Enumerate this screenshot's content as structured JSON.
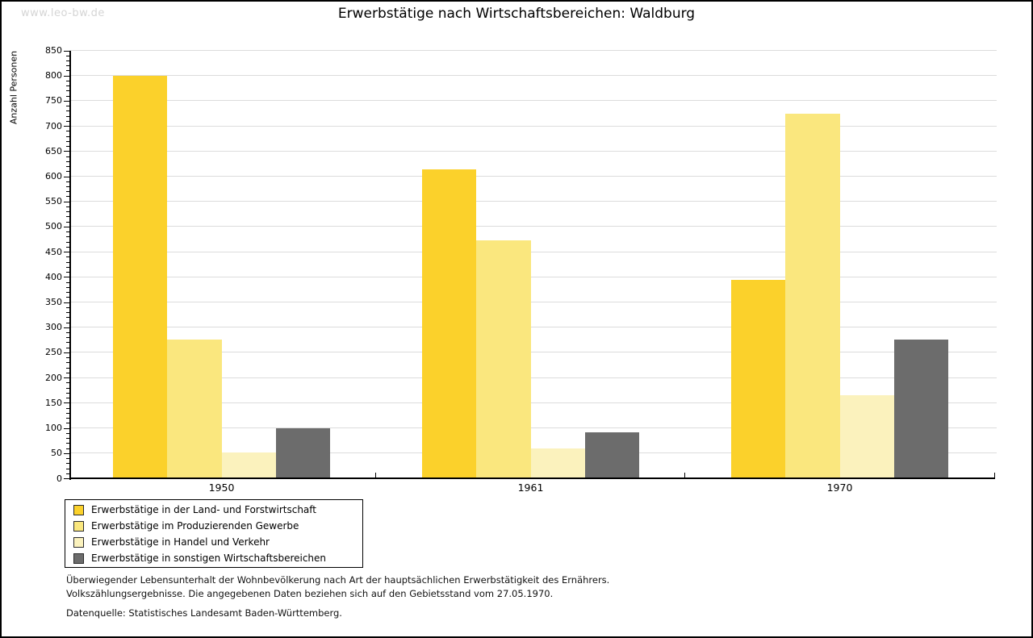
{
  "watermark": "www.leo-bw.de",
  "title": "Erwerbstätige nach Wirtschaftsbereichen: Waldburg",
  "chart_data": {
    "type": "bar",
    "title": "Erwerbstätige nach Wirtschaftsbereichen: Waldburg",
    "xlabel": "",
    "ylabel": "Anzahl Personen",
    "ylim": [
      0,
      850
    ],
    "ytick_step": 50,
    "minor_tick_step": 10,
    "grid": true,
    "legend_position": "bottom-left",
    "categories": [
      "1950",
      "1961",
      "1970"
    ],
    "series": [
      {
        "name": "Erwerbstätige in der Land- und Forstwirtschaft",
        "color": "#FBD12B",
        "values": [
          800,
          613,
          394
        ]
      },
      {
        "name": "Erwerbstätige im Produzierenden Gewerbe",
        "color": "#FAE77E",
        "values": [
          275,
          472,
          725
        ]
      },
      {
        "name": "Erwerbstätige in Handel und Verkehr",
        "color": "#FBF2BD",
        "values": [
          52,
          59,
          165
        ]
      },
      {
        "name": "Erwerbstätige in sonstigen Wirtschaftsbereichen",
        "color": "#6C6C6C",
        "values": [
          100,
          92,
          275
        ]
      }
    ]
  },
  "footnotes": {
    "line1": "Überwiegender Lebensunterhalt der Wohnbevölkerung nach Art der hauptsächlichen Erwerbstätigkeit des Ernährers.",
    "line2": "Volkszählungsergebnisse. Die angegebenen Daten beziehen sich auf den Gebietsstand vom 27.05.1970.",
    "source": "Datenquelle: Statistisches Landesamt Baden-Württemberg."
  },
  "colors": {
    "grid": "#DCDCDC",
    "axis": "#000000",
    "watermark": "#D5D5D5"
  }
}
